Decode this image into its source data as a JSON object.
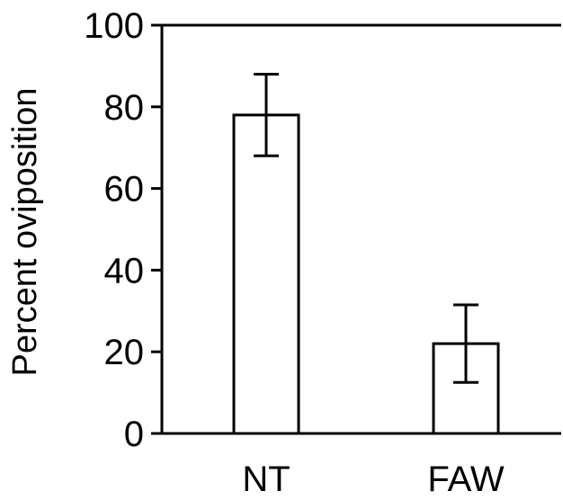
{
  "chart_data": {
    "type": "bar",
    "categories": [
      "NT",
      "FAW"
    ],
    "values": [
      78,
      22
    ],
    "error": [
      10,
      9.5
    ],
    "xlabel": "",
    "ylabel": "Percent oviposition",
    "ylim": [
      0,
      100
    ],
    "yticks": [
      0,
      20,
      40,
      60,
      80,
      100
    ],
    "grid": false,
    "colors": {
      "bar_fill": "#ffffff",
      "stroke": "#000000"
    }
  }
}
